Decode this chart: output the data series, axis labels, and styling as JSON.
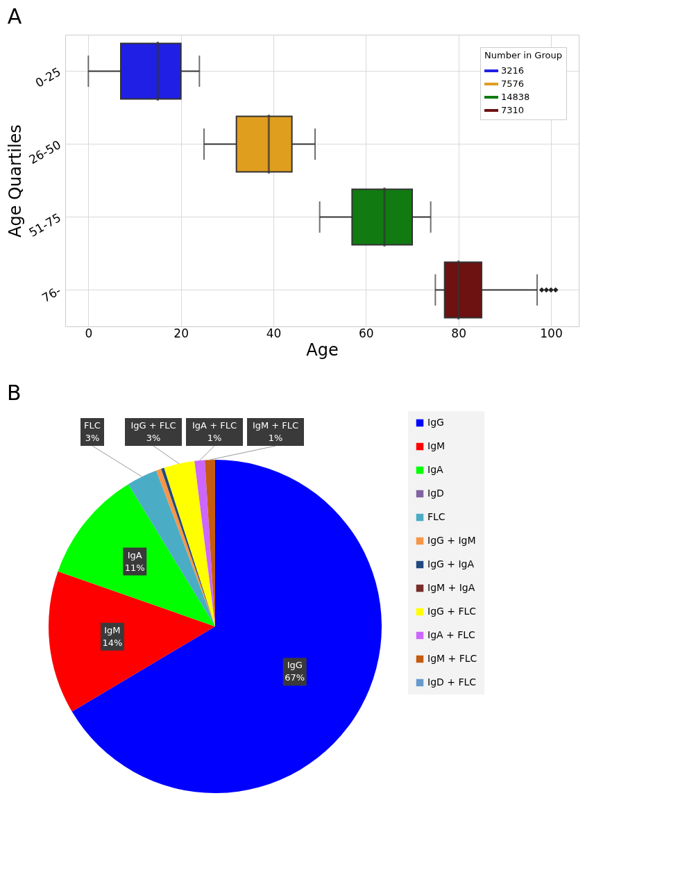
{
  "chart_data": [
    {
      "type": "box",
      "title": "A",
      "xlabel": "Age",
      "ylabel": "Age Quartiles",
      "orientation": "horizontal",
      "categories": [
        "0-25",
        "26-50",
        "51-75",
        "76-"
      ],
      "xlim": [
        -5,
        106
      ],
      "xticks": [
        0,
        20,
        40,
        60,
        80,
        100
      ],
      "grid": true,
      "legend": "top right",
      "legend_title": "Number in Group",
      "marker": "diamond",
      "series": [
        {
          "name": "3216",
          "color": "#1f1fe5",
          "boxes": [
            {
              "low": 0,
              "q1": 7,
              "median": 15,
              "q3": 20,
              "high": 24
            },
            null,
            null,
            null
          ]
        },
        {
          "name": "7576",
          "color": "#e09e1f",
          "boxes": [
            null,
            {
              "low": 25,
              "q1": 32,
              "median": 39,
              "q3": 44,
              "high": 49
            },
            null,
            null
          ]
        },
        {
          "name": "14838",
          "color": "#117a11",
          "boxes": [
            null,
            null,
            {
              "low": 50,
              "q1": 57,
              "median": 64,
              "q3": 70,
              "high": 74
            },
            null
          ]
        },
        {
          "name": "7310",
          "color": "#6d1111",
          "boxes": [
            null,
            null,
            null,
            {
              "low": 75,
              "q1": 77,
              "median": 80,
              "q3": 85,
              "high": 97,
              "outliers": [
                98,
                99,
                100,
                101
              ]
            }
          ]
        }
      ]
    },
    {
      "type": "pie",
      "title": "B",
      "legend": "right",
      "categories": [
        "IgG",
        "IgM",
        "IgA",
        "IgD",
        "FLC",
        "IgG + IgM",
        "IgG + IgA",
        "IgM + IgA",
        "IgG + FLC",
        "IgA + FLC",
        "IgM + FLC",
        "IgD + FLC"
      ],
      "values": [
        67,
        14,
        11,
        0,
        3,
        0.5,
        0.3,
        0,
        3,
        1,
        1,
        0
      ],
      "value_labels": [
        "67%",
        "14%",
        "11%",
        null,
        "3%",
        null,
        null,
        null,
        "3%",
        "1%",
        "1%",
        null
      ],
      "colors": [
        "#0000ff",
        "#ff0000",
        "#00ff00",
        "#8064a2",
        "#4bacc6",
        "#f79646",
        "#1f497d",
        "#772c2a",
        "#ffff00",
        "#cc66ff",
        "#c55a11",
        "#6699cc"
      ]
    }
  ]
}
